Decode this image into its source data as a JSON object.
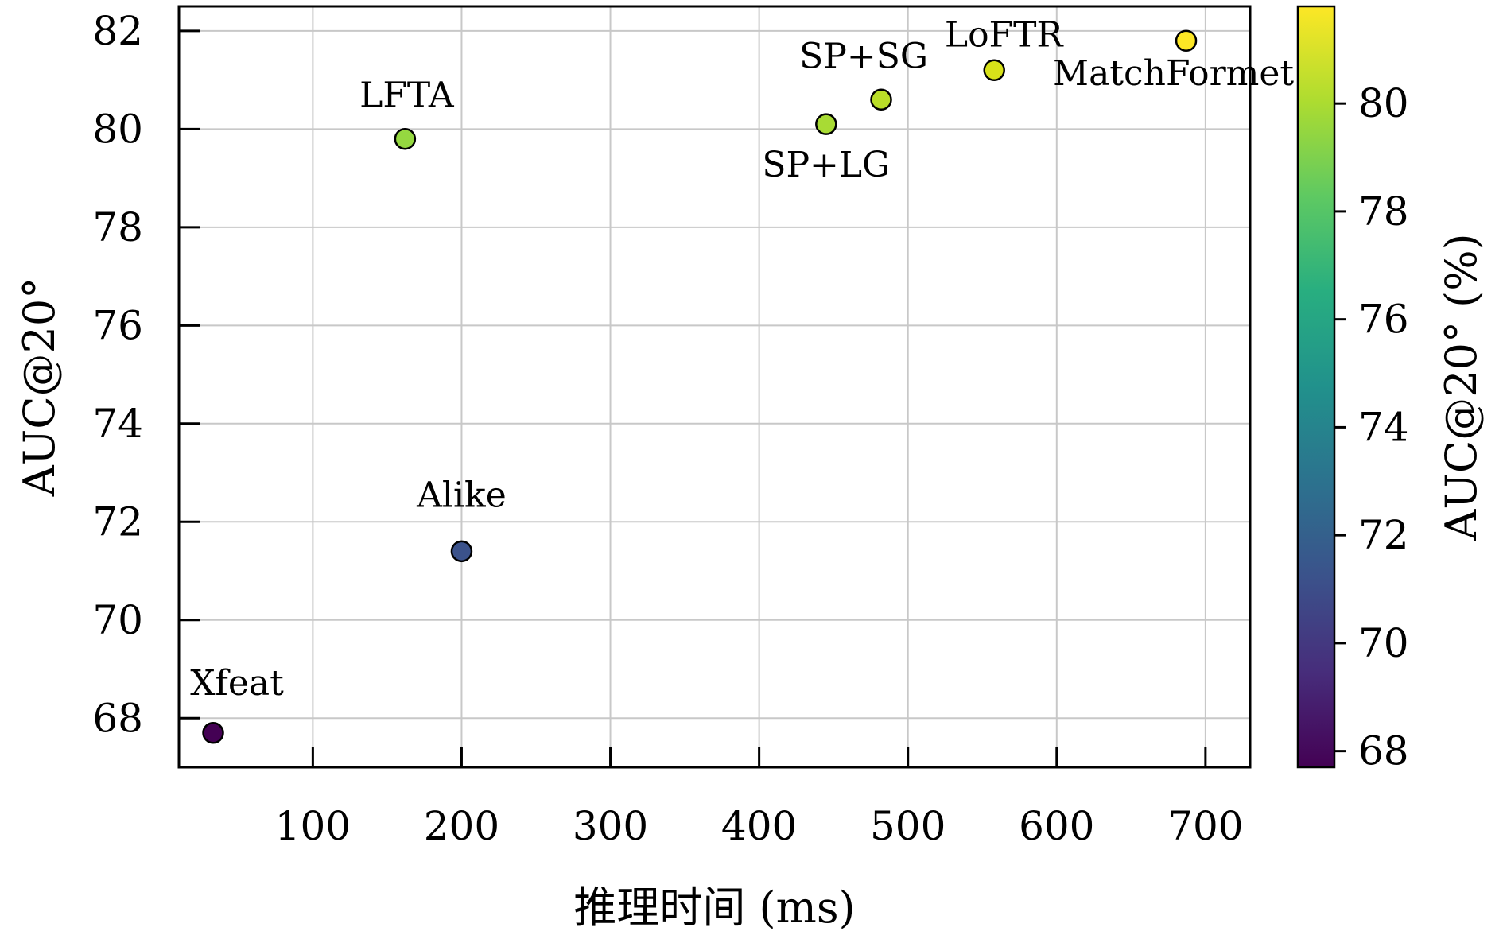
{
  "chart_data": {
    "type": "scatter",
    "xlabel": "推理时间 (ms)",
    "ylabel": "AUC@20°",
    "colorbar_label": "AUC@20° (%)",
    "xlim": [
      10,
      730
    ],
    "ylim": [
      67,
      82.5
    ],
    "xticks": [
      100,
      200,
      300,
      400,
      500,
      600,
      700
    ],
    "yticks": [
      68,
      70,
      72,
      74,
      76,
      78,
      80,
      82
    ],
    "colorbar_ticks": [
      68,
      70,
      72,
      74,
      76,
      78,
      80
    ],
    "colorbar_range": [
      67.7,
      81.8
    ],
    "colormap": "viridis",
    "grid": true,
    "points": [
      {
        "label": "Xfeat",
        "x": 33,
        "y": 67.7,
        "color": "#440154"
      },
      {
        "label": "Alike",
        "x": 200,
        "y": 71.4,
        "color": "#3b528b"
      },
      {
        "label": "LFTA",
        "x": 162,
        "y": 79.8,
        "color": "#95d840"
      },
      {
        "label": "SP+LG",
        "x": 445,
        "y": 80.1,
        "color": "#a8db34"
      },
      {
        "label": "SP+SG",
        "x": 482,
        "y": 80.6,
        "color": "#bade28"
      },
      {
        "label": "LoFTR",
        "x": 558,
        "y": 81.2,
        "color": "#d8e219"
      },
      {
        "label": "MatchFormet",
        "x": 687,
        "y": 81.8,
        "color": "#fde725"
      }
    ]
  }
}
